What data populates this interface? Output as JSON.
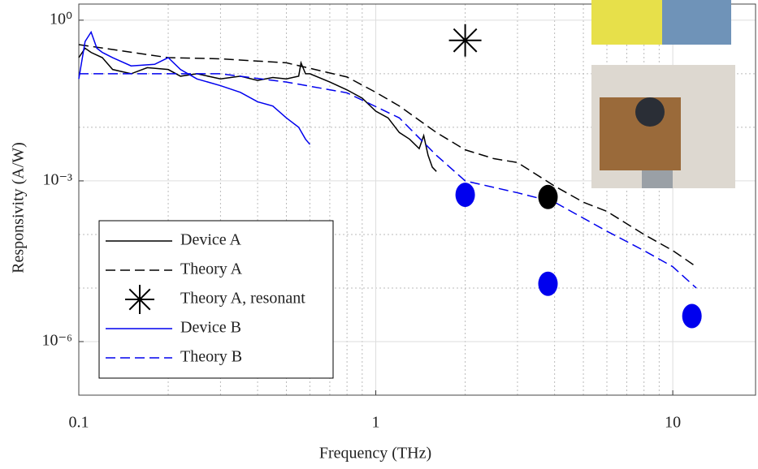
{
  "chart_data": {
    "type": "line",
    "xlabel": "Frequency (THz)",
    "ylabel": "Responsivity (A/W)",
    "xscale": "log",
    "yscale": "log",
    "xlim": [
      0.1,
      19
    ],
    "ylim": [
      1e-07,
      2
    ],
    "xticks": [
      0.1,
      1,
      10
    ],
    "yticks": [
      {
        "value": 1e-06,
        "label": "10⁻⁶"
      },
      {
        "value": 0.001,
        "label": "10⁻³"
      },
      {
        "value": 1,
        "label": "10⁰"
      }
    ],
    "xminorticks": [
      0.2,
      0.3,
      0.4,
      0.5,
      0.6,
      0.7,
      0.8,
      0.9,
      2,
      3,
      4,
      5,
      6,
      7,
      8,
      9
    ],
    "yminorticks": [
      1e-07,
      1e-05,
      0.0001,
      0.01,
      0.1
    ],
    "grid": true,
    "legend": "lower left",
    "series": [
      {
        "name": "Device A",
        "color": "#000000",
        "dash": "solid",
        "x": [
          0.1,
          0.105,
          0.11,
          0.12,
          0.13,
          0.15,
          0.17,
          0.2,
          0.22,
          0.25,
          0.3,
          0.35,
          0.4,
          0.45,
          0.5,
          0.55,
          0.56,
          0.58,
          0.6,
          0.7,
          0.8,
          0.9,
          1.0,
          1.1,
          1.2,
          1.3,
          1.4,
          1.45,
          1.5,
          1.55,
          1.6
        ],
        "values": [
          0.2,
          0.3,
          0.25,
          0.2,
          0.12,
          0.1,
          0.13,
          0.12,
          0.09,
          0.1,
          0.08,
          0.09,
          0.075,
          0.085,
          0.08,
          0.09,
          0.16,
          0.1,
          0.1,
          0.07,
          0.05,
          0.035,
          0.02,
          0.015,
          0.008,
          0.006,
          0.004,
          0.007,
          0.003,
          0.0018,
          0.0015
        ]
      },
      {
        "name": "Theory A",
        "color": "#000000",
        "dash": "dashed",
        "x": [
          0.1,
          0.2,
          0.3,
          0.5,
          0.8,
          1.0,
          1.2,
          1.6,
          2,
          2.5,
          3,
          4,
          5,
          6,
          8,
          10,
          12
        ],
        "values": [
          0.35,
          0.2,
          0.19,
          0.16,
          0.087,
          0.045,
          0.025,
          0.008,
          0.0038,
          0.0026,
          0.0022,
          0.0008,
          0.0004,
          0.00027,
          0.0001,
          5e-05,
          2.5e-05
        ]
      },
      {
        "name": "Theory A, resonant",
        "color": "#000000",
        "marker": "star",
        "x": [
          2
        ],
        "values": [
          0.42
        ]
      },
      {
        "name": "Device B",
        "color": "#0000ee",
        "dash": "solid",
        "x": [
          0.1,
          0.105,
          0.11,
          0.115,
          0.12,
          0.13,
          0.15,
          0.18,
          0.2,
          0.22,
          0.25,
          0.3,
          0.35,
          0.4,
          0.45,
          0.5,
          0.55,
          0.58,
          0.6
        ],
        "values": [
          0.08,
          0.4,
          0.6,
          0.3,
          0.25,
          0.2,
          0.14,
          0.15,
          0.2,
          0.12,
          0.08,
          0.06,
          0.045,
          0.03,
          0.025,
          0.015,
          0.01,
          0.006,
          0.0048
        ]
      },
      {
        "name": "Theory B",
        "color": "#0000ee",
        "dash": "dashed",
        "x": [
          0.1,
          0.3,
          0.5,
          0.8,
          1.2,
          1.6,
          2,
          3,
          4,
          6,
          8,
          10,
          12
        ],
        "values": [
          0.1,
          0.1,
          0.07,
          0.044,
          0.015,
          0.003,
          0.001,
          0.0006,
          0.0004,
          0.000115,
          5e-05,
          2.5e-05,
          1e-05
        ]
      }
    ],
    "points": [
      {
        "color": "#0000ee",
        "x": [
          2,
          3.8,
          11.6
        ],
        "values": [
          0.00055,
          1.2e-05,
          3e-06
        ]
      },
      {
        "color": "#000000",
        "x": [
          3.8
        ],
        "values": [
          0.0005
        ]
      }
    ]
  }
}
